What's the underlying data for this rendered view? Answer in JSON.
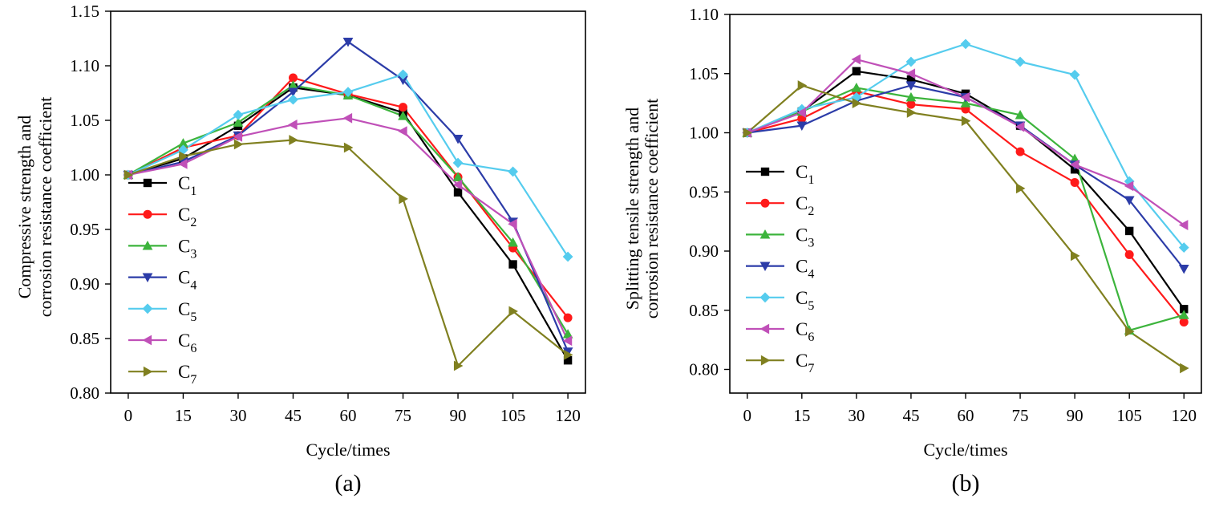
{
  "chart_data": [
    {
      "type": "line",
      "panel_label": "(a)",
      "xlabel": "Cycle/times",
      "ylabel_lines": [
        "Compressive strength and",
        "corrosion resistance coefficient"
      ],
      "x": [
        0,
        15,
        30,
        45,
        60,
        75,
        90,
        105,
        120
      ],
      "ylim": [
        0.8,
        1.15
      ],
      "yticks": [
        "0.80",
        "0.85",
        "0.90",
        "0.95",
        "1.00",
        "1.05",
        "1.10",
        "1.15"
      ],
      "legend_position": "left",
      "grid": false,
      "series": [
        {
          "name": "C",
          "sub": "1",
          "color": "#000000",
          "marker": "square",
          "values": [
            1.0,
            1.015,
            1.045,
            1.08,
            1.073,
            1.057,
            0.984,
            0.918,
            0.83
          ]
        },
        {
          "name": "C",
          "sub": "2",
          "color": "#ff1a1a",
          "marker": "circle",
          "values": [
            1.0,
            1.025,
            1.036,
            1.089,
            1.074,
            1.062,
            0.998,
            0.933,
            0.869
          ]
        },
        {
          "name": "C",
          "sub": "3",
          "color": "#3cb43c",
          "marker": "triangle-up",
          "values": [
            1.0,
            1.029,
            1.048,
            1.082,
            1.073,
            1.054,
            0.998,
            0.938,
            0.854
          ]
        },
        {
          "name": "C",
          "sub": "4",
          "color": "#2c3ca8",
          "marker": "triangle-down",
          "values": [
            1.0,
            1.012,
            1.036,
            1.076,
            1.122,
            1.087,
            1.033,
            0.957,
            0.838
          ]
        },
        {
          "name": "C",
          "sub": "5",
          "color": "#55ccee",
          "marker": "diamond",
          "values": [
            1.0,
            1.023,
            1.055,
            1.069,
            1.076,
            1.092,
            1.011,
            1.003,
            0.925
          ]
        },
        {
          "name": "C",
          "sub": "6",
          "color": "#c050b8",
          "marker": "triangle-left",
          "values": [
            1.0,
            1.01,
            1.035,
            1.046,
            1.052,
            1.04,
            0.991,
            0.955,
            0.848
          ]
        },
        {
          "name": "C",
          "sub": "7",
          "color": "#808020",
          "marker": "triangle-right",
          "values": [
            1.0,
            1.017,
            1.028,
            1.032,
            1.025,
            0.978,
            0.825,
            0.875,
            0.835
          ]
        }
      ]
    },
    {
      "type": "line",
      "panel_label": "(b)",
      "xlabel": "Cycle/times",
      "ylabel_lines": [
        "Splitting tensile strength and",
        "corrosion resistance coefficient"
      ],
      "x": [
        0,
        15,
        30,
        45,
        60,
        75,
        90,
        105,
        120
      ],
      "ylim": [
        0.78,
        1.1
      ],
      "yticks": [
        "0.80",
        "0.85",
        "0.90",
        "0.95",
        "1.00",
        "1.05",
        "1.10"
      ],
      "legend_position": "left",
      "grid": false,
      "series": [
        {
          "name": "C",
          "sub": "1",
          "color": "#000000",
          "marker": "square",
          "values": [
            1.0,
            1.018,
            1.052,
            1.045,
            1.033,
            1.006,
            0.969,
            0.917,
            0.851
          ]
        },
        {
          "name": "C",
          "sub": "2",
          "color": "#ff1a1a",
          "marker": "circle",
          "values": [
            1.0,
            1.012,
            1.035,
            1.024,
            1.02,
            0.984,
            0.958,
            0.897,
            0.84
          ]
        },
        {
          "name": "C",
          "sub": "3",
          "color": "#3cb43c",
          "marker": "triangle-up",
          "values": [
            1.0,
            1.018,
            1.038,
            1.03,
            1.025,
            1.015,
            0.978,
            0.833,
            0.846
          ]
        },
        {
          "name": "C",
          "sub": "4",
          "color": "#2c3ca8",
          "marker": "triangle-down",
          "values": [
            1.0,
            1.006,
            1.027,
            1.04,
            1.03,
            1.006,
            0.973,
            0.943,
            0.885
          ]
        },
        {
          "name": "C",
          "sub": "5",
          "color": "#55ccee",
          "marker": "diamond",
          "values": [
            1.0,
            1.02,
            1.03,
            1.06,
            1.075,
            1.06,
            1.049,
            0.959,
            0.903
          ]
        },
        {
          "name": "C",
          "sub": "6",
          "color": "#c050b8",
          "marker": "triangle-left",
          "values": [
            1.0,
            1.017,
            1.062,
            1.05,
            1.03,
            1.005,
            0.973,
            0.955,
            0.922
          ]
        },
        {
          "name": "C",
          "sub": "7",
          "color": "#808020",
          "marker": "triangle-right",
          "values": [
            1.0,
            1.04,
            1.025,
            1.017,
            1.01,
            0.953,
            0.896,
            0.832,
            0.801
          ]
        }
      ]
    }
  ]
}
